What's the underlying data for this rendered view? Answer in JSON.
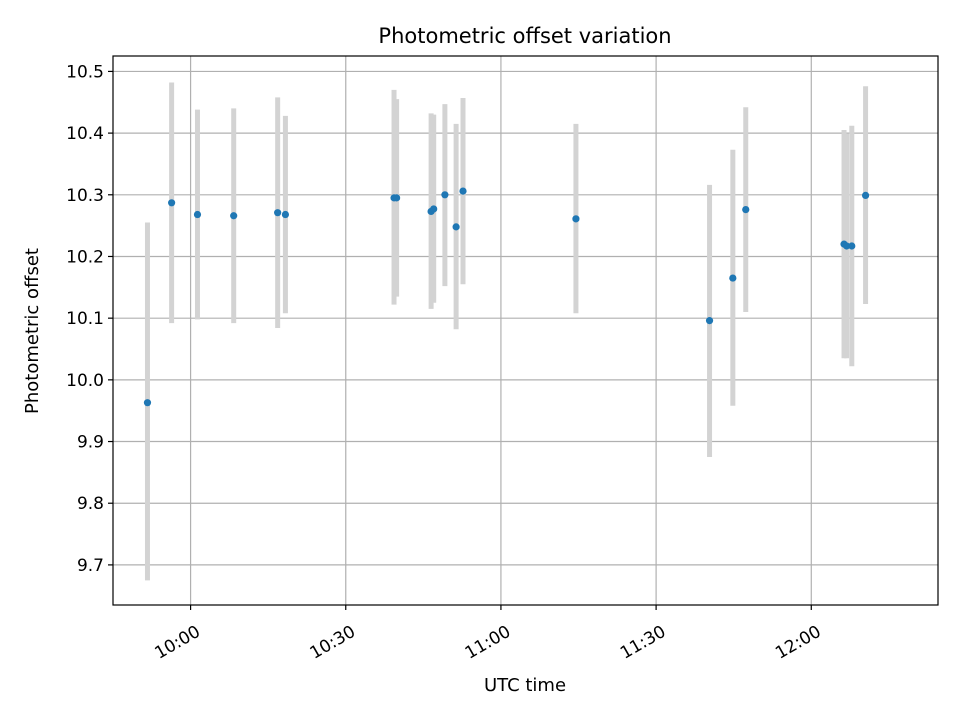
{
  "chart_data": {
    "type": "scatter",
    "title": "Photometric offset variation",
    "xlabel": "UTC time",
    "ylabel": "Photometric offset",
    "x_axis": "time",
    "xlim": [
      "09:45:00",
      "12:24:30"
    ],
    "ylim": [
      9.635,
      10.525
    ],
    "x_ticks": [
      {
        "t": "10:00",
        "label": "10:00"
      },
      {
        "t": "10:30",
        "label": "10:30"
      },
      {
        "t": "11:00",
        "label": "11:00"
      },
      {
        "t": "11:30",
        "label": "11:30"
      },
      {
        "t": "12:00",
        "label": "12:00"
      }
    ],
    "y_ticks": [
      {
        "v": 9.7,
        "label": "9.7"
      },
      {
        "v": 9.8,
        "label": "9.8"
      },
      {
        "v": 9.9,
        "label": "9.9"
      },
      {
        "v": 10.0,
        "label": "10.0"
      },
      {
        "v": 10.1,
        "label": "10.1"
      },
      {
        "v": 10.2,
        "label": "10.2"
      },
      {
        "v": 10.3,
        "label": "10.3"
      },
      {
        "v": 10.4,
        "label": "10.4"
      },
      {
        "v": 10.5,
        "label": "10.5"
      }
    ],
    "grid": true,
    "point_color": "#1f77b4",
    "errorbar_color": "#d3d3d3",
    "points": [
      {
        "x": "09:51:40",
        "y": 9.963,
        "ylo": 9.675,
        "yhi": 10.255
      },
      {
        "x": "09:56:20",
        "y": 10.287,
        "ylo": 10.092,
        "yhi": 10.482
      },
      {
        "x": "10:01:20",
        "y": 10.268,
        "ylo": 10.098,
        "yhi": 10.438
      },
      {
        "x": "10:08:20",
        "y": 10.266,
        "ylo": 10.092,
        "yhi": 10.44
      },
      {
        "x": "10:16:50",
        "y": 10.271,
        "ylo": 10.084,
        "yhi": 10.458
      },
      {
        "x": "10:18:20",
        "y": 10.268,
        "ylo": 10.108,
        "yhi": 10.428
      },
      {
        "x": "10:39:20",
        "y": 10.295,
        "ylo": 10.122,
        "yhi": 10.47
      },
      {
        "x": "10:39:50",
        "y": 10.295,
        "ylo": 10.135,
        "yhi": 10.455
      },
      {
        "x": "10:46:30",
        "y": 10.273,
        "ylo": 10.115,
        "yhi": 10.432
      },
      {
        "x": "10:47:00",
        "y": 10.277,
        "ylo": 10.125,
        "yhi": 10.43
      },
      {
        "x": "10:49:10",
        "y": 10.3,
        "ylo": 10.152,
        "yhi": 10.447
      },
      {
        "x": "10:51:20",
        "y": 10.248,
        "ylo": 10.082,
        "yhi": 10.415
      },
      {
        "x": "10:52:40",
        "y": 10.306,
        "ylo": 10.155,
        "yhi": 10.457
      },
      {
        "x": "11:14:30",
        "y": 10.261,
        "ylo": 10.108,
        "yhi": 10.415
      },
      {
        "x": "11:40:20",
        "y": 10.096,
        "ylo": 9.875,
        "yhi": 10.316
      },
      {
        "x": "11:44:50",
        "y": 10.165,
        "ylo": 9.958,
        "yhi": 10.373
      },
      {
        "x": "11:47:20",
        "y": 10.276,
        "ylo": 10.11,
        "yhi": 10.442
      },
      {
        "x": "12:06:20",
        "y": 10.22,
        "ylo": 10.035,
        "yhi": 10.405
      },
      {
        "x": "12:06:50",
        "y": 10.217,
        "ylo": 10.035,
        "yhi": 10.399
      },
      {
        "x": "12:07:50",
        "y": 10.217,
        "ylo": 10.022,
        "yhi": 10.412
      },
      {
        "x": "12:10:30",
        "y": 10.299,
        "ylo": 10.123,
        "yhi": 10.476
      }
    ]
  }
}
